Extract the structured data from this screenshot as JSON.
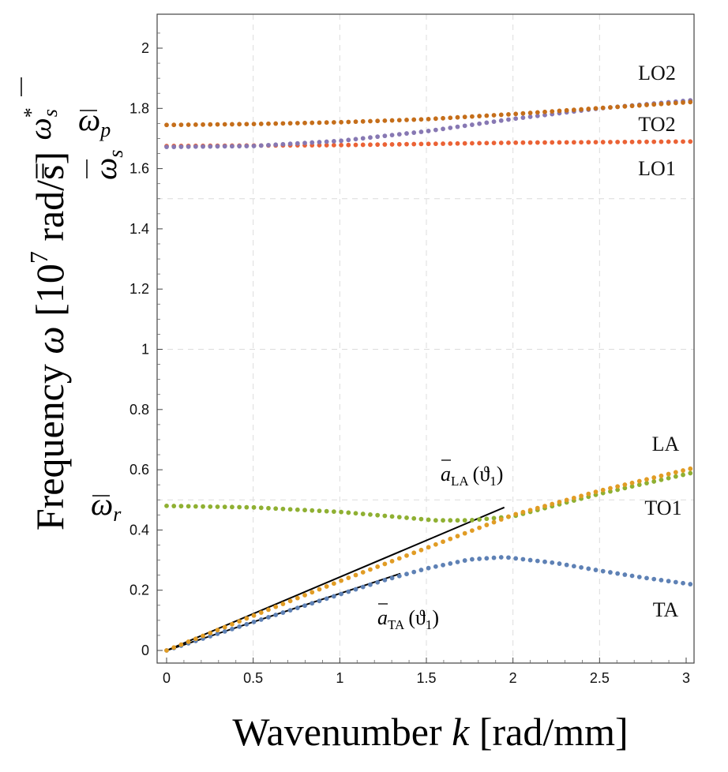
{
  "chart_data": {
    "type": "scatter",
    "title": "",
    "xlabel": "Wavenumber k [rad/mm]",
    "ylabel": "Frequency ω [10⁷ rad/s]",
    "xlim": [
      0,
      3.05
    ],
    "ylim": [
      -0.04,
      2.11
    ],
    "grid": true,
    "x_ticks": [
      0,
      0.5,
      1,
      1.5,
      2,
      2.5,
      3
    ],
    "x_tick_labels": [
      "0",
      "0.5",
      "1",
      "1.5",
      "2",
      "2.5",
      "3"
    ],
    "y_ticks": [
      0,
      0.2,
      0.4,
      0.6,
      0.8,
      1,
      1.2,
      1.4,
      1.6,
      1.8,
      2
    ],
    "y_tick_labels": [
      "0",
      "0.2",
      "0.4",
      "0.6",
      "0.8",
      "1",
      "1.2",
      "1.4",
      "1.6",
      "1.8",
      "2"
    ],
    "series": [
      {
        "name": "TA",
        "color": "#5E81B5",
        "x": [
          0,
          0.25,
          0.5,
          0.75,
          1.0,
          1.25,
          1.5,
          1.75,
          1.95,
          2.25,
          2.5,
          2.75,
          3.05
        ],
        "y": [
          0,
          0.047,
          0.094,
          0.14,
          0.186,
          0.232,
          0.272,
          0.302,
          0.31,
          0.29,
          0.265,
          0.242,
          0.218
        ]
      },
      {
        "name": "LA",
        "color": "#E19C24",
        "x": [
          0,
          0.5,
          1.0,
          1.5,
          2.0,
          2.5,
          3.05
        ],
        "y": [
          0,
          0.115,
          0.23,
          0.34,
          0.45,
          0.53,
          0.607
        ]
      },
      {
        "name": "TO1",
        "color": "#8FB032",
        "x": [
          0,
          0.5,
          1.0,
          1.3,
          1.55,
          1.75,
          2.0,
          2.5,
          3.05
        ],
        "y": [
          0.48,
          0.475,
          0.46,
          0.445,
          0.432,
          0.432,
          0.445,
          0.52,
          0.592
        ]
      },
      {
        "name": "LO1",
        "color": "#EB6235",
        "x": [
          0,
          1.0,
          2.0,
          3.05
        ],
        "y": [
          1.675,
          1.678,
          1.686,
          1.69
        ]
      },
      {
        "name": "TO2",
        "color": "#8778B3",
        "x": [
          0,
          0.5,
          1.0,
          1.5,
          2.0,
          2.5,
          3.05
        ],
        "y": [
          1.672,
          1.675,
          1.692,
          1.724,
          1.765,
          1.8,
          1.828
        ]
      },
      {
        "name": "LO2",
        "color": "#C56E1A",
        "x": [
          0,
          0.5,
          1.0,
          1.5,
          2.0,
          2.5,
          3.05
        ],
        "y": [
          1.745,
          1.748,
          1.754,
          1.764,
          1.781,
          1.801,
          1.822
        ]
      }
    ],
    "tangent_lines": [
      {
        "name": "a_LA",
        "x": [
          0,
          1.95
        ],
        "y": [
          0,
          0.475
        ]
      },
      {
        "name": "a_TA",
        "x": [
          0,
          1.35
        ],
        "y": [
          0,
          0.255
        ]
      }
    ],
    "series_labels": [
      "LO2",
      "TO2",
      "LO1",
      "LA",
      "TO1",
      "TA"
    ],
    "annotations": {
      "a_la": {
        "base": "a",
        "sub": "LA",
        "arg": "(ϑ",
        "arg_sub": "1",
        "close": ")"
      },
      "a_ta": {
        "base": "a",
        "sub": "TA",
        "arg": "(ϑ",
        "arg_sub": "1",
        "close": ")"
      }
    },
    "reference_labels": {
      "omega_r": {
        "base": "ω",
        "sub": "r"
      },
      "omega_p": {
        "base": "ω",
        "sub": "p"
      },
      "omega_s": {
        "base": "ω",
        "sub": "s"
      },
      "omega_s_star": {
        "base": "ω",
        "sub": "s",
        "sup": "*",
        "rel": "="
      }
    },
    "axis_titles": {
      "x": {
        "prefix": "Wavenumber ",
        "var": "k",
        "unit": " [rad/mm]"
      },
      "y": {
        "prefix": "Frequency ",
        "var": "ω",
        "unit_open": " [10",
        "unit_exp": "7",
        "unit_close": " rad/s]"
      }
    }
  }
}
